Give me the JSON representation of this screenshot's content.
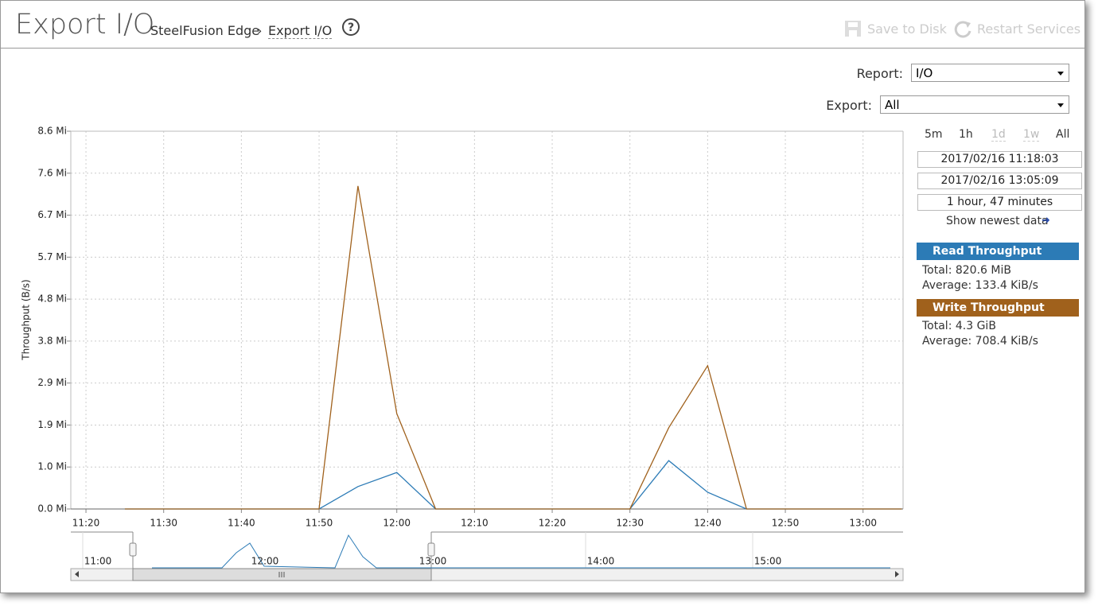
{
  "header": {
    "title": "Export I/O",
    "breadcrumb": [
      "SteelFusion Edge",
      "Export I/O"
    ],
    "actions": [
      "Save to Disk",
      "Restart Services"
    ]
  },
  "controls": {
    "report_label": "Report:",
    "report_value": "I/O",
    "export_label": "Export:",
    "export_value": "All"
  },
  "range": {
    "buttons": [
      "5m",
      "1h",
      "1d",
      "1w",
      "All"
    ],
    "start": "2017/02/16 11:18:03",
    "end": "2017/02/16 13:05:09",
    "duration": "1 hour, 47 minutes",
    "newest": "Show newest data"
  },
  "legend": [
    {
      "total": "Total: 820.6 MiB",
      "average": "Average: 133.4 KiB/s"
    },
    {
      "total": "Total: 4.3 GiB",
      "average": "Average: 708.4 KiB/s"
    }
  ],
  "chart_data": {
    "type": "line",
    "ylabel": "Throughput (B/s)",
    "x": [
      "11:25",
      "11:30",
      "11:35",
      "11:40",
      "11:45",
      "11:50",
      "11:55",
      "12:00",
      "12:05",
      "12:10",
      "12:15",
      "12:20",
      "12:25",
      "12:30",
      "12:35",
      "12:40",
      "12:45",
      "12:50",
      "12:55",
      "13:00",
      "13:05"
    ],
    "xlim": [
      "11:18:03",
      "13:05:09"
    ],
    "xticks": [
      "11:20",
      "11:30",
      "11:40",
      "11:50",
      "12:00",
      "12:10",
      "12:20",
      "12:30",
      "12:40",
      "12:50",
      "13:00"
    ],
    "ylim": [
      0,
      8.595
    ],
    "yticks": [
      {
        "value": 0,
        "label": "0.0 Mi"
      },
      {
        "value": 0.955,
        "label": "1.0 Mi"
      },
      {
        "value": 1.91,
        "label": "1.9 Mi"
      },
      {
        "value": 2.865,
        "label": "2.9 Mi"
      },
      {
        "value": 3.82,
        "label": "3.8 Mi"
      },
      {
        "value": 4.775,
        "label": "4.8 Mi"
      },
      {
        "value": 5.73,
        "label": "5.7 Mi"
      },
      {
        "value": 6.685,
        "label": "6.7 Mi"
      },
      {
        "value": 7.64,
        "label": "7.6 Mi"
      },
      {
        "value": 8.595,
        "label": "8.6 Mi"
      }
    ],
    "grid": true,
    "series": [
      {
        "name": "Read Throughput",
        "color": "#2c7bb6",
        "values": [
          0,
          0,
          0,
          0,
          0,
          0,
          0.51,
          0.83,
          0,
          0,
          0,
          0,
          0,
          0,
          1.1,
          0.38,
          0,
          0,
          0,
          0,
          0
        ]
      },
      {
        "name": "Write Throughput",
        "color": "#a0611c",
        "values": [
          0,
          0,
          0,
          0,
          0,
          0,
          7.35,
          2.17,
          0,
          0,
          0,
          0,
          0,
          0,
          1.85,
          3.26,
          0,
          0,
          0,
          0,
          0
        ]
      }
    ]
  },
  "navigator": {
    "labels": [
      "11:00",
      "12:00",
      "13:00",
      "14:00",
      "15:00"
    ]
  }
}
